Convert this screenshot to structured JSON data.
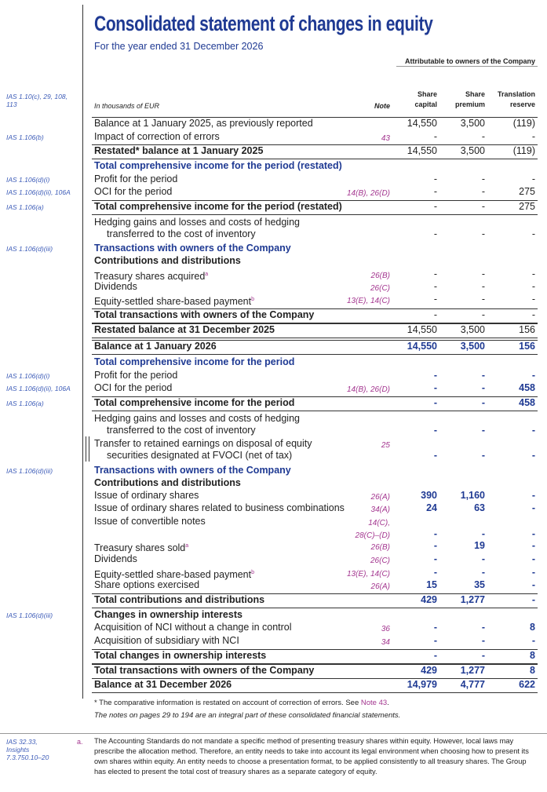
{
  "header": {
    "title": "Consolidated statement of changes in equity",
    "subtitle": "For the year ended 31 December 2026",
    "attributable": "Attributable to owners of the Company",
    "ref": "IAS 1.10(c), 29, 108, 113",
    "units": "In thousands of EUR",
    "note": "Note",
    "columns": [
      [
        "Share",
        "capital"
      ],
      [
        "Share",
        "premium"
      ],
      [
        "Translation",
        "reserve"
      ]
    ]
  },
  "rows": [
    {
      "label": [
        "Balance at 1 January 2025, as previously reported"
      ],
      "values": [
        "14,550",
        "3,500",
        "(119)"
      ]
    },
    {
      "label": [
        "Impact of correction of errors"
      ],
      "note": [
        "43"
      ],
      "values": [
        "-",
        "-",
        "-"
      ],
      "ref": "IAS 1.106(b)"
    },
    {
      "label": [
        "Restated* balance at 1 January 2025"
      ],
      "values": [
        "14,550",
        "3,500",
        "(119)"
      ]
    },
    {
      "label": [
        "Total comprehensive income for the period (restated)"
      ]
    },
    {
      "label": [
        "Profit for the period"
      ],
      "values": [
        "-",
        "-",
        "-"
      ],
      "ref": "IAS 1.106(d)(i)"
    },
    {
      "label": [
        "OCI for the period"
      ],
      "note": [
        "14(B), 26(D)"
      ],
      "values": [
        "-",
        "-",
        "275"
      ],
      "ref": "IAS 1.106(d)(ii), 106A"
    },
    {
      "label": [
        "Total comprehensive income for the period (restated)"
      ],
      "values": [
        "-",
        "-",
        "275"
      ],
      "ref": "IAS 1.106(a)"
    },
    {
      "label": [
        "Hedging gains and losses and costs of hedging",
        "transferred to the cost of inventory"
      ],
      "values": [
        "-",
        "-",
        "-"
      ]
    },
    {
      "label": [
        "Transactions with owners of the Company"
      ],
      "ref": "IAS 1.106(d)(iii)"
    },
    {
      "label": [
        "Contributions and distributions"
      ]
    },
    {
      "label": [
        "Treasury shares acquired"
      ],
      "sup": "a",
      "note": [
        "26(B)"
      ],
      "values": [
        "-",
        "-",
        "-"
      ]
    },
    {
      "label": [
        "Dividends"
      ],
      "note": [
        "26(C)"
      ],
      "values": [
        "-",
        "-",
        "-"
      ]
    },
    {
      "label": [
        "Equity-settled share-based payment"
      ],
      "sup": "b",
      "note": [
        "13(E), 14(C)"
      ],
      "values": [
        "-",
        "-",
        "-"
      ]
    },
    {
      "label": [
        "Total transactions with owners of the Company"
      ],
      "values": [
        "-",
        "-",
        "-"
      ]
    },
    {
      "label": [
        "Restated balance at 31 December 2025"
      ],
      "values": [
        "14,550",
        "3,500",
        "156"
      ]
    },
    {
      "label": [
        "Balance at 1 January 2026"
      ],
      "values": [
        "14,550",
        "3,500",
        "156"
      ]
    },
    {
      "label": [
        "Total comprehensive income for the period"
      ]
    },
    {
      "label": [
        "Profit for the period"
      ],
      "values": [
        "-",
        "-",
        "-"
      ],
      "ref": "IAS 1.106(d)(i)"
    },
    {
      "label": [
        "OCI for the period"
      ],
      "note": [
        "14(B), 26(D)"
      ],
      "values": [
        "-",
        "-",
        "458"
      ],
      "ref": "IAS 1.106(d)(ii), 106A"
    },
    {
      "label": [
        "Total comprehensive income for the period"
      ],
      "values": [
        "-",
        "-",
        "458"
      ],
      "ref": "IAS 1.106(a)"
    },
    {
      "label": [
        "Hedging gains and losses and costs of hedging",
        "transferred to the cost of inventory"
      ],
      "values": [
        "-",
        "-",
        "-"
      ]
    },
    {
      "label": [
        "Transfer to retained earnings on disposal of equity",
        "securities designated at FVOCI (net of tax)"
      ],
      "note": [
        "25"
      ],
      "values": [
        "-",
        "-",
        "-"
      ]
    },
    {
      "label": [
        "Transactions with owners of the Company"
      ],
      "ref": "IAS 1.106(d)(iii)"
    },
    {
      "label": [
        "Contributions and distributions"
      ]
    },
    {
      "label": [
        "Issue of ordinary shares"
      ],
      "note": [
        "26(A)"
      ],
      "values": [
        "390",
        "1,160",
        "-"
      ]
    },
    {
      "label": [
        "Issue of ordinary shares related to business combinations"
      ],
      "note": [
        "34(A)"
      ],
      "values": [
        "24",
        "63",
        "-"
      ]
    },
    {
      "label": [
        "Issue of convertible notes"
      ],
      "note": [
        "14(C),",
        "28(C)–(D)"
      ],
      "values": [
        "-",
        "-",
        "-"
      ]
    },
    {
      "label": [
        "Treasury shares sold"
      ],
      "sup": "a",
      "note": [
        "26(B)"
      ],
      "values": [
        "-",
        "19",
        "-"
      ]
    },
    {
      "label": [
        "Dividends"
      ],
      "note": [
        "26(C)"
      ],
      "values": [
        "-",
        "-",
        "-"
      ]
    },
    {
      "label": [
        "Equity-settled share-based payment"
      ],
      "sup": "b",
      "note": [
        "13(E), 14(C)"
      ],
      "values": [
        "-",
        "-",
        "-"
      ]
    },
    {
      "label": [
        "Share options exercised"
      ],
      "note": [
        "26(A)"
      ],
      "values": [
        "15",
        "35",
        "-"
      ]
    },
    {
      "label": [
        "Total contributions and distributions"
      ],
      "values": [
        "429",
        "1,277",
        "-"
      ]
    },
    {
      "label": [
        "Changes in ownership interests"
      ],
      "ref": "IAS 1.106(d)(iii)"
    },
    {
      "label": [
        "Acquisition of NCI without a change in control"
      ],
      "note": [
        "36"
      ],
      "values": [
        "-",
        "-",
        "8"
      ]
    },
    {
      "label": [
        "Acquisition of subsidiary with NCI"
      ],
      "note": [
        "34"
      ],
      "values": [
        "-",
        "-",
        "-"
      ]
    },
    {
      "label": [
        "Total changes in ownership interests"
      ],
      "values": [
        "-",
        "-",
        "8"
      ]
    },
    {
      "label": [
        "Total transactions with owners of the Company"
      ],
      "values": [
        "429",
        "1,277",
        "8"
      ]
    },
    {
      "label": [
        "Balance at 31 December 2026"
      ],
      "values": [
        "14,979",
        "4,777",
        "622"
      ]
    }
  ],
  "footnotes": {
    "star": {
      "text": "* The comparative information is restated on account of correction of errors. See ",
      "link": "Note 43",
      "end": "."
    },
    "notes_line": "The notes on pages 29 to 194 are an integral part of these consolidated financial statements."
  },
  "bottom_note": {
    "ref": "IAS 32.33, Insights 7.3.750.10–20",
    "marker": "a.",
    "text": "The Accounting Standards do not mandate a specific method of presenting treasury shares within equity. However, local laws may prescribe the allocation method. Therefore, an entity needs to take into account its legal environment when choosing how to present its own shares within equity. An entity needs to choose a presentation format, to be applied consistently to all treasury shares. The Group has elected to present the total cost of treasury shares as a separate category of equity."
  }
}
